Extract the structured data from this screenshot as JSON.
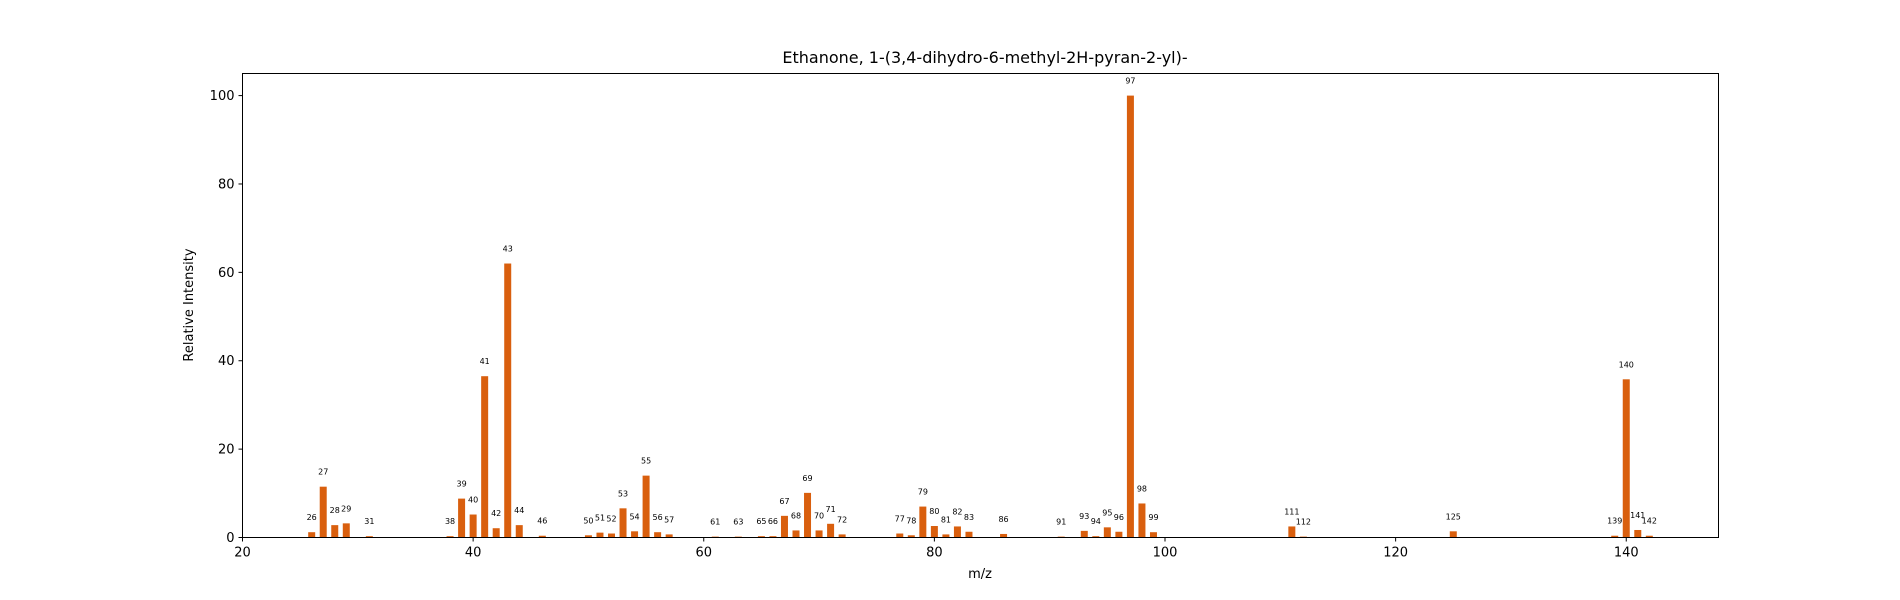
{
  "chart_data": {
    "type": "bar",
    "title": "Ethanone, 1-(3,4-dihydro-6-methyl-2H-pyran-2-yl)-",
    "xlabel": "m/z",
    "ylabel": "Relative Intensity",
    "xlim": [
      20,
      148
    ],
    "ylim": [
      0,
      105
    ],
    "xticks": [
      20,
      40,
      60,
      80,
      100,
      120,
      140
    ],
    "yticks": [
      0,
      20,
      40,
      60,
      80,
      100
    ],
    "bar_color": "#d95f0e",
    "grid": false,
    "x": [
      26,
      27,
      28,
      29,
      31,
      38,
      39,
      40,
      41,
      42,
      43,
      44,
      46,
      50,
      51,
      52,
      53,
      54,
      55,
      56,
      57,
      61,
      63,
      65,
      66,
      67,
      68,
      69,
      70,
      71,
      72,
      77,
      78,
      79,
      80,
      81,
      82,
      83,
      86,
      91,
      93,
      94,
      95,
      96,
      97,
      98,
      99,
      111,
      112,
      125,
      139,
      140,
      141,
      142
    ],
    "values": [
      1.2,
      11.5,
      2.8,
      3.2,
      0.3,
      0.3,
      8.8,
      5.2,
      36.5,
      2.1,
      62.0,
      2.8,
      0.4,
      0.5,
      1.1,
      0.9,
      6.6,
      1.4,
      14.0,
      1.2,
      0.7,
      0.2,
      0.2,
      0.3,
      0.3,
      4.9,
      1.6,
      10.1,
      1.6,
      3.1,
      0.7,
      0.9,
      0.5,
      7.0,
      2.6,
      0.7,
      2.5,
      1.3,
      0.8,
      0.2,
      1.5,
      0.3,
      2.3,
      1.3,
      100.0,
      7.7,
      1.2,
      2.5,
      0.2,
      1.4,
      0.4,
      35.8,
      1.7,
      0.4
    ]
  }
}
